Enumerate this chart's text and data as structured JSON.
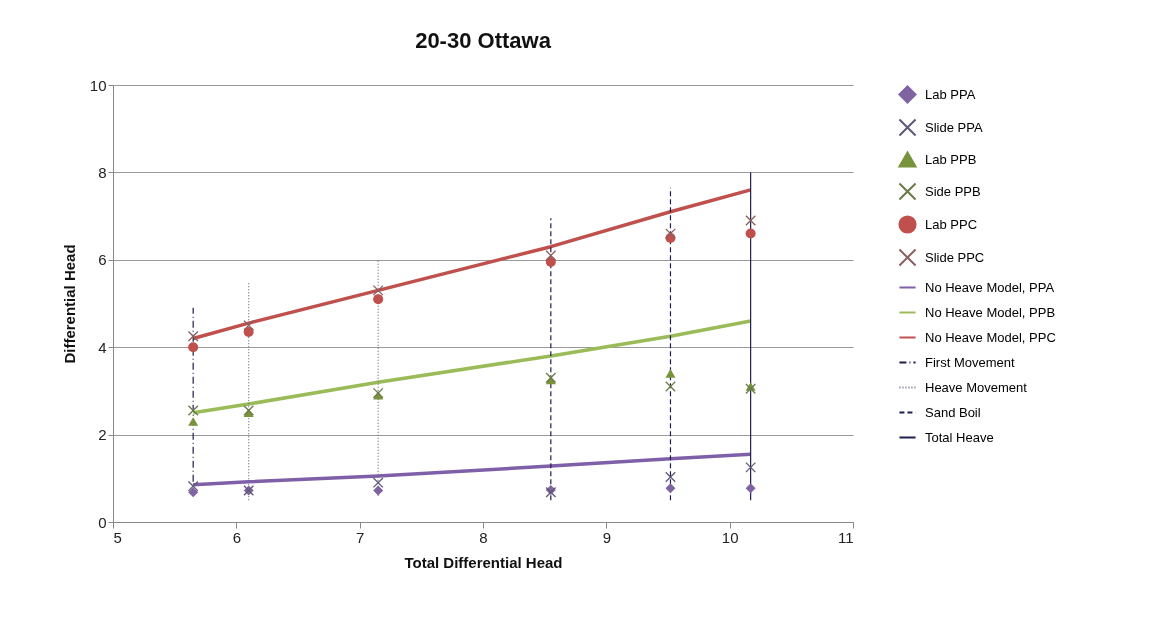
{
  "chart_data": {
    "type": "scatter",
    "title": "20-30 Ottawa",
    "xlabel": "Total Differential Head",
    "ylabel": "Differential Head",
    "xlim": [
      5,
      11
    ],
    "xticks": [
      5,
      6,
      7,
      8,
      9,
      10,
      11
    ],
    "ylim": [
      0,
      10
    ],
    "yticks": [
      0,
      2,
      4,
      6,
      8,
      10
    ],
    "grid": "y",
    "legend": "right",
    "series": [
      {
        "name": "Lab PPA",
        "type": "scatter",
        "marker": "diamond",
        "color": "#8064a2",
        "x": [
          5.65,
          6.1,
          7.15,
          8.55,
          9.52,
          10.17
        ],
        "values": [
          0.68,
          0.72,
          0.72,
          0.73,
          0.77,
          0.77
        ]
      },
      {
        "name": "Slide PPA",
        "type": "scatter",
        "marker": "cross",
        "color": "#5f5878",
        "x": [
          5.65,
          6.1,
          7.15,
          8.55,
          9.52,
          10.17
        ],
        "values": [
          0.82,
          0.72,
          0.9,
          0.68,
          1.03,
          1.25
        ]
      },
      {
        "name": "Lab PPB",
        "type": "scatter",
        "marker": "triangle",
        "color": "#77933c",
        "x": [
          5.65,
          6.1,
          7.15,
          8.55,
          9.52,
          10.17
        ],
        "values": [
          2.3,
          2.5,
          2.9,
          3.25,
          3.4,
          3.1
        ]
      },
      {
        "name": "Side PPB",
        "type": "scatter",
        "marker": "cross",
        "color": "#6a7a48",
        "x": [
          5.65,
          6.1,
          7.15,
          8.55,
          9.52,
          10.17
        ],
        "values": [
          2.55,
          2.55,
          2.95,
          3.3,
          3.1,
          3.05
        ]
      },
      {
        "name": "Lab PPC",
        "type": "scatter",
        "marker": "circle",
        "color": "#c0504d",
        "x": [
          5.65,
          6.1,
          7.15,
          8.55,
          9.52,
          10.17
        ],
        "values": [
          4.0,
          4.35,
          5.1,
          5.95,
          6.5,
          6.6
        ]
      },
      {
        "name": "Slide PPC",
        "type": "scatter",
        "marker": "cross",
        "color": "#8a5f60",
        "x": [
          5.65,
          6.1,
          7.15,
          8.55,
          9.52,
          10.17
        ],
        "values": [
          4.25,
          4.5,
          5.3,
          6.1,
          6.6,
          6.9
        ]
      },
      {
        "name": "No Heave Model, PPA",
        "type": "line",
        "line_style": "solid",
        "color": "#7f5fa8",
        "x": [
          5.65,
          6.1,
          7.15,
          8.55,
          9.52,
          10.17
        ],
        "values": [
          0.85,
          0.92,
          1.05,
          1.28,
          1.45,
          1.55
        ]
      },
      {
        "name": "No Heave Model, PPB",
        "type": "line",
        "line_style": "solid",
        "color": "#9bbb59",
        "x": [
          5.65,
          6.1,
          7.15,
          8.55,
          9.52,
          10.17
        ],
        "values": [
          2.5,
          2.7,
          3.2,
          3.8,
          4.25,
          4.6
        ]
      },
      {
        "name": "No Heave Model, PPC",
        "type": "line",
        "line_style": "solid",
        "color": "#c0504d",
        "x": [
          5.65,
          6.1,
          7.15,
          8.55,
          9.52,
          10.17
        ],
        "values": [
          4.2,
          4.55,
          5.3,
          6.3,
          7.1,
          7.6
        ]
      },
      {
        "name": "First Movement",
        "type": "line",
        "line_style": "dashdot",
        "color": "#1f1f4f",
        "x": [
          5.65,
          5.65
        ],
        "values": [
          0.6,
          4.9
        ]
      },
      {
        "name": "Heave Movement",
        "type": "line",
        "line_style": "dotted",
        "color": "#6a6a8a",
        "x": [
          6.1,
          6.1,
          null,
          7.15,
          7.15
        ],
        "values": [
          0.5,
          5.5,
          null,
          0.6,
          6.0
        ]
      },
      {
        "name": "Sand Boil",
        "type": "line",
        "line_style": "dashed",
        "color": "#1f1f4f",
        "x": [
          8.55,
          8.55,
          null,
          9.52,
          9.52
        ],
        "values": [
          0.5,
          6.95,
          null,
          0.5,
          7.65
        ]
      },
      {
        "name": "Total Heave",
        "type": "line",
        "line_style": "solid",
        "color": "#1f1f4f",
        "x": [
          10.17,
          10.17
        ],
        "values": [
          0.5,
          8.0
        ]
      }
    ]
  }
}
